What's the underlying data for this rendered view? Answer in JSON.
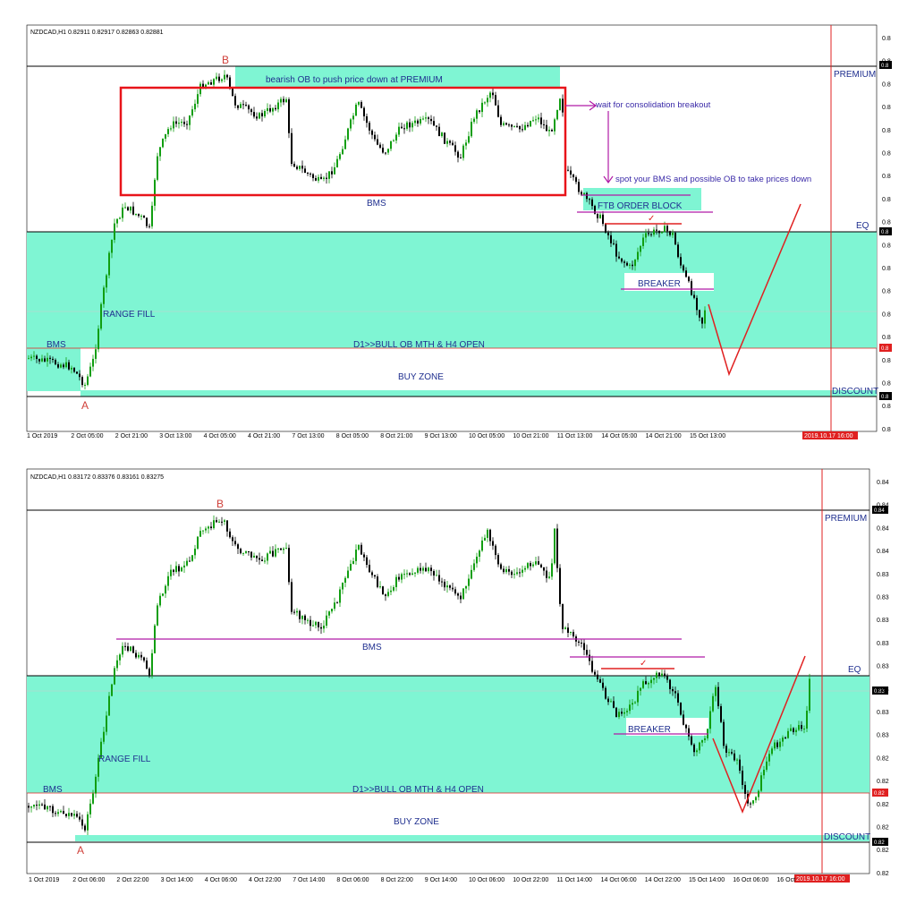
{
  "chart_data": [
    {
      "type": "candlestick",
      "symbol_header": "NZDCAD,H1  0.82911 0.82917 0.82863 0.82881",
      "x_tick_labels": [
        "1 Oct 2019",
        "2 Oct 05:00",
        "2 Oct 21:00",
        "3 Oct 13:00",
        "4 Oct 05:00",
        "4 Oct 21:00",
        "7 Oct 13:00",
        "8 Oct 05:00",
        "8 Oct 21:00",
        "9 Oct 13:00",
        "10 Oct 05:00",
        "10 Oct 21:00",
        "11 Oct 13:00",
        "14 Oct 05:00",
        "14 Oct 21:00",
        "15 Oct 13:00"
      ],
      "y_tick_labels": [
        "0.8",
        "0.8",
        "0.8",
        "0.8",
        "0.8",
        "0.8",
        "0.8",
        "0.8",
        "0.8",
        "0.8",
        "0.8",
        "0.8",
        "0.8",
        "0.8",
        "0.8",
        "0.8",
        "0.8",
        "0.8"
      ],
      "time_marker_label": "2019.10.17 16:00",
      "annotations": {
        "point_a": "A",
        "point_b": "B",
        "premium": "PREMIUM",
        "eq": "EQ",
        "discount": "DISCOUNT",
        "bearish_ob": "bearish OB to push price down at PREMIUM",
        "wait_breakout": "wait for consolidation breakout",
        "spot_bms": "spot your BMS and possible OB to take prices down",
        "bms_range": "BMS",
        "ftb_order_block": "FTB ORDER BLOCK",
        "breaker": "BREAKER",
        "range_fill": "RANGE FILL",
        "bms_low": "BMS",
        "d1_bull_ob": "D1>>BULL OB MTH & H4 OPEN",
        "buy_zone": "BUY ZONE",
        "check_mark": "✓"
      },
      "price_tags": [
        "0.8",
        "0.8",
        "0.8",
        "0.8"
      ]
    },
    {
      "type": "candlestick",
      "symbol_header": "NZDCAD,H1  0.83172 0.83376 0.83161 0.83275",
      "x_tick_labels": [
        "1 Oct 2019",
        "2 Oct 06:00",
        "2 Oct 22:00",
        "3 Oct 14:00",
        "4 Oct 06:00",
        "4 Oct 22:00",
        "7 Oct 14:00",
        "8 Oct 06:00",
        "8 Oct 22:00",
        "9 Oct 14:00",
        "10 Oct 06:00",
        "10 Oct 22:00",
        "11 Oct 14:00",
        "14 Oct 06:00",
        "14 Oct 22:00",
        "15 Oct 14:00",
        "16 Oct 06:00",
        "16 Oct"
      ],
      "y_tick_labels": [
        "0.84",
        "0.84",
        "0.84",
        "0.84",
        "0.83",
        "0.83",
        "0.83",
        "0.83",
        "0.83",
        "0.83",
        "0.83",
        "0.83",
        "0.82",
        "0.82",
        "0.82",
        "0.82",
        "0.82",
        "0.82"
      ],
      "time_marker_label": "2019.10.17 16:00",
      "annotations": {
        "point_a": "A",
        "point_b": "B",
        "premium": "PREMIUM",
        "eq": "EQ",
        "discount": "DISCOUNT",
        "bms_range": "BMS",
        "breaker": "BREAKER",
        "range_fill": "RANGE FILL",
        "bms_low": "BMS",
        "d1_bull_ob": "D1>>BULL OB MTH & H4 OPEN",
        "buy_zone": "BUY ZONE",
        "check_mark": "✓"
      },
      "price_tags": [
        "0.84",
        "0.83",
        "0.82",
        "0.82"
      ]
    }
  ],
  "colors": {
    "zone_fill": "#7ff5d3",
    "premium_line": "#000000",
    "red_box": "#e8141a",
    "red_path": "#e02020",
    "purple_line": "#b01aa6",
    "candle_up": "#119e11",
    "candle_down": "#000000",
    "time_marker": "#e02020",
    "text_blue": "#1f2f8f"
  }
}
